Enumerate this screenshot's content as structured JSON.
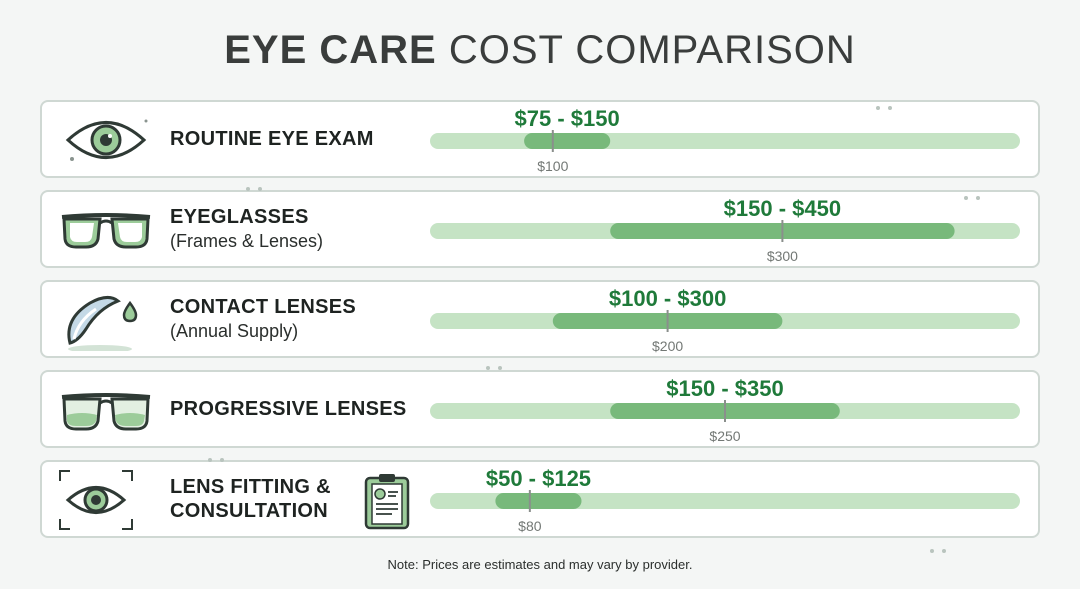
{
  "title": {
    "bold": "EYE CARE",
    "rest": "COST COMPARISON"
  },
  "rows": [
    {
      "icon": "eye-icon",
      "label": "ROUTINE EYE EXAM",
      "sub": "",
      "range_label": "$75 - $150",
      "typical_label": "$100"
    },
    {
      "icon": "eyeglasses-icon",
      "label": "EYEGLASSES",
      "sub": "(Frames & Lenses)",
      "range_label": "$150 - $450",
      "typical_label": "$300"
    },
    {
      "icon": "contact-lens-icon",
      "label": "CONTACT LENSES",
      "sub": "(Annual Supply)",
      "range_label": "$100 - $300",
      "typical_label": "$200"
    },
    {
      "icon": "progressive-glasses-icon",
      "label": "PROGRESSIVE LENSES",
      "sub": "",
      "range_label": "$150 - $350",
      "typical_label": "$250"
    },
    {
      "icon": "eye-scan-clipboard-icon",
      "label": "LENS FITTING & CONSULTATION",
      "sub": "",
      "range_label": "$50 - $125",
      "typical_label": "$80"
    }
  ],
  "chart_data": {
    "type": "bar",
    "orientation": "horizontal-range",
    "categories": [
      "ROUTINE EYE EXAM",
      "EYEGLASSES",
      "CONTACT LENSES",
      "PROGRESSIVE LENSES",
      "LENS FITTING & CONSULTATION"
    ],
    "low": [
      75,
      150,
      100,
      150,
      50
    ],
    "high": [
      150,
      450,
      300,
      350,
      125
    ],
    "typical": [
      100,
      300,
      200,
      250,
      80
    ],
    "xlim": [
      0,
      500
    ],
    "grid": false,
    "colors": {
      "track": "#c5e3c4",
      "range": "#78b97b",
      "marker": "#8a8f8c",
      "range_text": "#1f7a3a",
      "typical_text": "#737875"
    }
  },
  "note": "Note: Prices are estimates and may vary by provider."
}
